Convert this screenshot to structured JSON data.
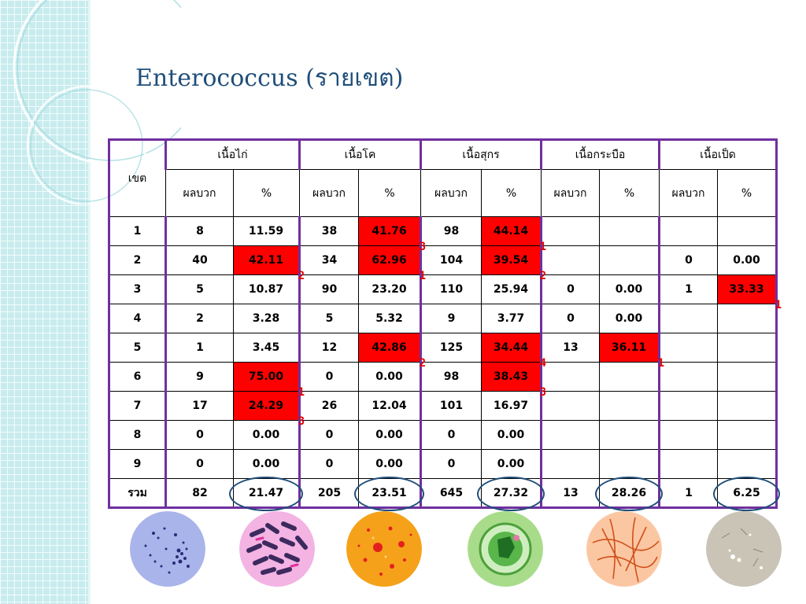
{
  "title": "Enterococcus (รายเขต)",
  "table": {
    "zone_header": "เขต",
    "groups": [
      "เนื้อไก่",
      "เนื้อโค",
      "เนื้อสุกร",
      "เนื้อกระบือ",
      "เนื้อเป็ด"
    ],
    "positive_header": "ผลบวก",
    "percent_header": "%",
    "rows": [
      {
        "zone": "1",
        "cells": [
          "8",
          "11.59",
          "38",
          "41.76",
          "98",
          "44.14",
          "",
          "",
          "",
          ""
        ]
      },
      {
        "zone": "2",
        "cells": [
          "40",
          "42.11",
          "34",
          "62.96",
          "104",
          "39.54",
          "",
          "",
          "0",
          "0.00"
        ]
      },
      {
        "zone": "3",
        "cells": [
          "5",
          "10.87",
          "90",
          "23.20",
          "110",
          "25.94",
          "0",
          "0.00",
          "1",
          "33.33"
        ]
      },
      {
        "zone": "4",
        "cells": [
          "2",
          "3.28",
          "5",
          "5.32",
          "9",
          "3.77",
          "0",
          "0.00",
          "",
          ""
        ]
      },
      {
        "zone": "5",
        "cells": [
          "1",
          "3.45",
          "12",
          "42.86",
          "125",
          "34.44",
          "13",
          "36.11",
          "",
          ""
        ]
      },
      {
        "zone": "6",
        "cells": [
          "9",
          "75.00",
          "0",
          "0.00",
          "98",
          "38.43",
          "",
          "",
          "",
          ""
        ]
      },
      {
        "zone": "7",
        "cells": [
          "17",
          "24.29",
          "26",
          "12.04",
          "101",
          "16.97",
          "",
          "",
          "",
          ""
        ]
      },
      {
        "zone": "8",
        "cells": [
          "0",
          "0.00",
          "0",
          "0.00",
          "0",
          "0.00",
          "",
          "",
          "",
          ""
        ]
      },
      {
        "zone": "9",
        "cells": [
          "0",
          "0.00",
          "0",
          "0.00",
          "0",
          "0.00",
          "",
          "",
          "",
          ""
        ]
      }
    ],
    "total": {
      "zone": "รวม",
      "cells": [
        "82",
        "21.47",
        "205",
        "23.51",
        "645",
        "27.32",
        "13",
        "28.26",
        "1",
        "6.25"
      ]
    },
    "highlight_color": "#ff0000",
    "highlighted": [
      {
        "row": 0,
        "col": 3
      },
      {
        "row": 0,
        "col": 5
      },
      {
        "row": 1,
        "col": 1
      },
      {
        "row": 1,
        "col": 3
      },
      {
        "row": 1,
        "col": 5
      },
      {
        "row": 2,
        "col": 9
      },
      {
        "row": 4,
        "col": 3
      },
      {
        "row": 4,
        "col": 5
      },
      {
        "row": 4,
        "col": 7
      },
      {
        "row": 5,
        "col": 1
      },
      {
        "row": 5,
        "col": 5
      },
      {
        "row": 6,
        "col": 1
      }
    ],
    "circled_total_percents": true,
    "circle_color": "#1f4e79",
    "ranks_color": "#e00000"
  },
  "rankings": [
    {
      "row": 0,
      "col": 3,
      "rank": "3"
    },
    {
      "row": 0,
      "col": 5,
      "rank": "1"
    },
    {
      "row": 1,
      "col": 1,
      "rank": "2"
    },
    {
      "row": 1,
      "col": 3,
      "rank": "1"
    },
    {
      "row": 1,
      "col": 5,
      "rank": "2"
    },
    {
      "row": 2,
      "col": 9,
      "rank": "1"
    },
    {
      "row": 4,
      "col": 3,
      "rank": "2"
    },
    {
      "row": 4,
      "col": 5,
      "rank": "4"
    },
    {
      "row": 4,
      "col": 7,
      "rank": "1"
    },
    {
      "row": 5,
      "col": 1,
      "rank": "1"
    },
    {
      "row": 5,
      "col": 5,
      "rank": "3"
    },
    {
      "row": 6,
      "col": 1,
      "rank": "3"
    }
  ],
  "images": [
    "bacteria-stain-blue-icon",
    "bacteria-rods-purple-icon",
    "colonies-orange-icon",
    "cell-green-icon",
    "filaments-orange-icon",
    "spores-gray-icon"
  ]
}
